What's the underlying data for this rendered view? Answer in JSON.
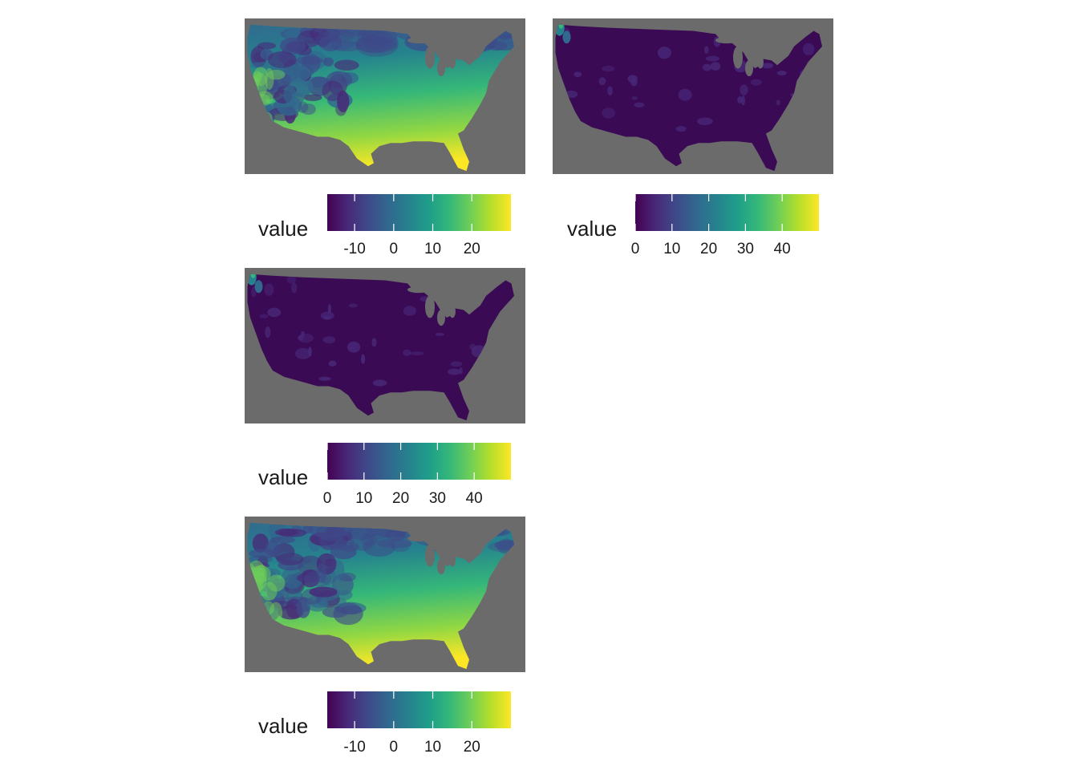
{
  "colors": {
    "panel_background": "#6b6b6b",
    "viridis": [
      "#440154",
      "#482878",
      "#3e4a89",
      "#31688e",
      "#26828e",
      "#1f9e89",
      "#35b779",
      "#6ece58",
      "#b5de2b",
      "#fde725"
    ]
  },
  "panels": [
    {
      "id": "panel-1",
      "map_style": "temperature",
      "legend": {
        "title": "value",
        "range": [
          -17,
          30
        ],
        "ticks": [
          {
            "value": -10,
            "label": "-10"
          },
          {
            "value": 0,
            "label": "0"
          },
          {
            "value": 10,
            "label": "10"
          },
          {
            "value": 20,
            "label": "20"
          }
        ]
      }
    },
    {
      "id": "panel-2",
      "map_style": "precipitation",
      "legend": {
        "title": "value",
        "range": [
          0,
          50
        ],
        "ticks": [
          {
            "value": 0,
            "label": "0"
          },
          {
            "value": 10,
            "label": "10"
          },
          {
            "value": 20,
            "label": "20"
          },
          {
            "value": 30,
            "label": "30"
          },
          {
            "value": 40,
            "label": "40"
          }
        ]
      }
    },
    {
      "id": "panel-3",
      "map_style": "precipitation",
      "legend": {
        "title": "value",
        "range": [
          0,
          50
        ],
        "ticks": [
          {
            "value": 0,
            "label": "0"
          },
          {
            "value": 10,
            "label": "10"
          },
          {
            "value": 20,
            "label": "20"
          },
          {
            "value": 30,
            "label": "30"
          },
          {
            "value": 40,
            "label": "40"
          }
        ]
      }
    },
    {
      "id": "panel-4",
      "map_style": "temperature",
      "legend": {
        "title": "value",
        "range": [
          -17,
          30
        ],
        "ticks": [
          {
            "value": -10,
            "label": "-10"
          },
          {
            "value": 0,
            "label": "0"
          },
          {
            "value": 10,
            "label": "10"
          },
          {
            "value": 20,
            "label": "20"
          }
        ]
      }
    }
  ]
}
